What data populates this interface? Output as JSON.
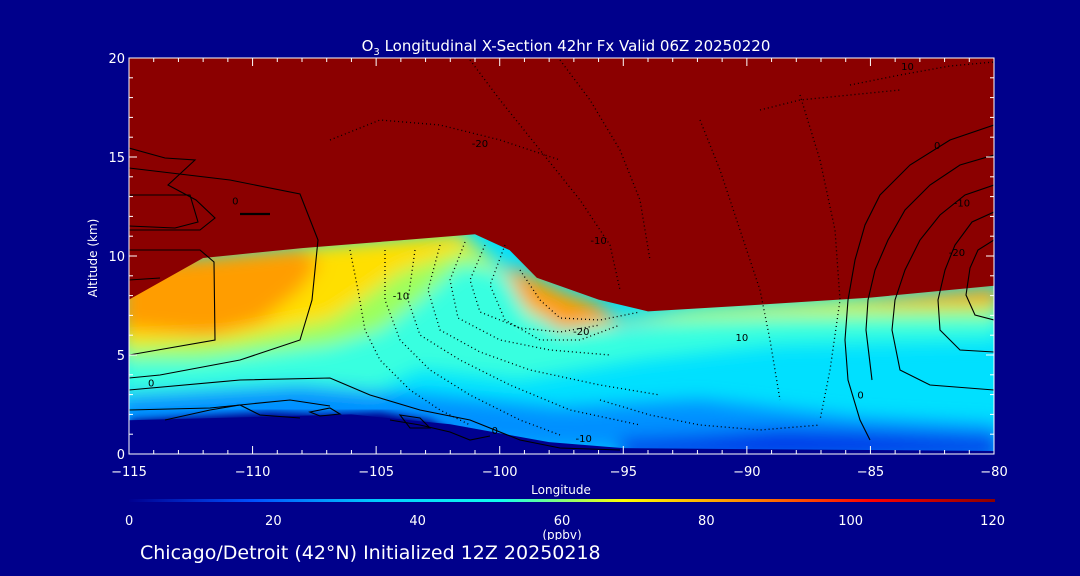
{
  "chart_data": {
    "type": "heatmap",
    "title": {
      "prefix": "O",
      "subscript": "3",
      "rest": " Longitudinal X-Section 42hr  Fx Valid 06Z 20250220"
    },
    "xlabel": "Longitude",
    "ylabel": "Altitude (km)",
    "xlim": [
      -115,
      -80
    ],
    "ylim": [
      0,
      20
    ],
    "x_ticks": [
      -115,
      -110,
      -105,
      -100,
      -95,
      -90,
      -85,
      -80
    ],
    "x_tick_labels": [
      "−115",
      "−110",
      "−105",
      "−100",
      "−95",
      "−90",
      "−85",
      "−80"
    ],
    "y_ticks": [
      0,
      5,
      10,
      15,
      20
    ],
    "y_tick_labels": [
      "0",
      "5",
      "10",
      "15",
      "20"
    ],
    "colorbar": {
      "min": 0,
      "max": 120,
      "ticks": [
        0,
        20,
        40,
        60,
        80,
        100,
        120
      ],
      "tick_labels": [
        "0",
        "20",
        "40",
        "60",
        "80",
        "100",
        "120"
      ],
      "label": "(ppbv)",
      "colors": [
        "#00008f",
        "#0050ff",
        "#00ccff",
        "#11ffee",
        "#ffff00",
        "#ff8800",
        "#ff0000",
        "#8b0000"
      ]
    },
    "colormap_colors": {
      "high": "#8b0000",
      "orange": "#ff9d00",
      "yellow": "#ffdf00",
      "green": "#9cff5c",
      "cyan": "#38ffe0",
      "lightblue": "#00e0ff",
      "blue": "#0090ff",
      "deepblue": "#0030e8",
      "ground": "#00008f"
    },
    "tropopause_altitude_km": [
      {
        "lon": -115,
        "alt": 7.8
      },
      {
        "lon": -112,
        "alt": 9.9
      },
      {
        "lon": -108,
        "alt": 10.4
      },
      {
        "lon": -104,
        "alt": 10.8
      },
      {
        "lon": -101,
        "alt": 11.1
      },
      {
        "lon": -99.6,
        "alt": 10.3
      },
      {
        "lon": -98.5,
        "alt": 8.9
      },
      {
        "lon": -96,
        "alt": 7.8
      },
      {
        "lon": -94,
        "alt": 7.2
      },
      {
        "lon": -90,
        "alt": 7.5
      },
      {
        "lon": -85,
        "alt": 7.9
      },
      {
        "lon": -80,
        "alt": 8.5
      }
    ],
    "surface_altitude_km": [
      {
        "lon": -115,
        "alt": 1.7
      },
      {
        "lon": -106,
        "alt": 2.0
      },
      {
        "lon": -102,
        "alt": 1.5
      },
      {
        "lon": -98,
        "alt": 0.6
      },
      {
        "lon": -95,
        "alt": 0.3
      },
      {
        "lon": -90,
        "alt": 0.25
      },
      {
        "lon": -85,
        "alt": 0.2
      },
      {
        "lon": -80,
        "alt": 0.15
      }
    ],
    "contour_labels": [
      {
        "text": "10",
        "lon": -83.5,
        "alt": 19.6
      },
      {
        "text": "-20",
        "lon": -100.8,
        "alt": 15.7
      },
      {
        "text": "0",
        "lon": -82.3,
        "alt": 15.6
      },
      {
        "text": "0",
        "lon": -110.7,
        "alt": 12.8
      },
      {
        "text": "-10",
        "lon": -81.3,
        "alt": 12.7
      },
      {
        "text": "-10",
        "lon": -96,
        "alt": 10.8
      },
      {
        "text": "-20",
        "lon": -81.5,
        "alt": 10.2
      },
      {
        "text": "-10",
        "lon": -104,
        "alt": 8.0
      },
      {
        "text": "-20",
        "lon": -96.7,
        "alt": 6.2
      },
      {
        "text": "10",
        "lon": -90.2,
        "alt": 5.9
      },
      {
        "text": "0",
        "lon": -114.1,
        "alt": 3.6
      },
      {
        "text": "0",
        "lon": -85.4,
        "alt": 3.0
      },
      {
        "text": "0",
        "lon": -100.2,
        "alt": 1.2
      },
      {
        "text": "-10",
        "lon": -96.6,
        "alt": 0.8
      }
    ]
  },
  "footer_text": "Chicago/Detroit (42°N) Initialized 12Z 20250218"
}
